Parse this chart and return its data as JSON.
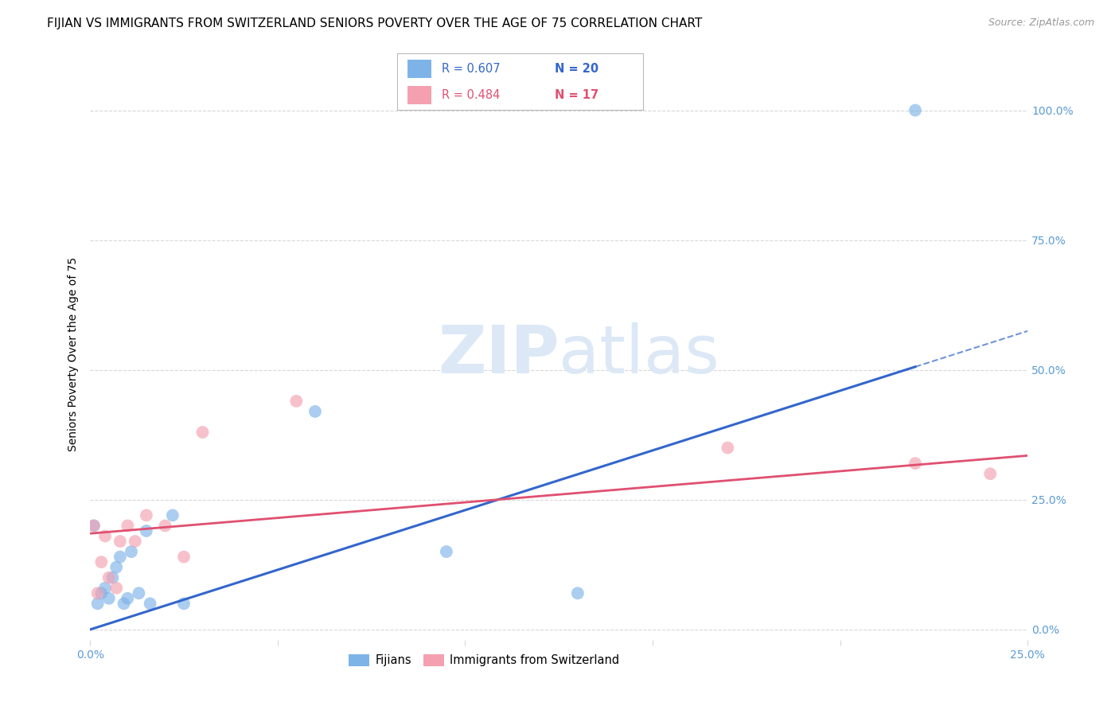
{
  "title": "FIJIAN VS IMMIGRANTS FROM SWITZERLAND SENIORS POVERTY OVER THE AGE OF 75 CORRELATION CHART",
  "source": "Source: ZipAtlas.com",
  "xlabel": "",
  "ylabel": "Seniors Poverty Over the Age of 75",
  "xlim": [
    0.0,
    0.25
  ],
  "ylim": [
    -0.02,
    1.08
  ],
  "yticks": [
    0.0,
    0.25,
    0.5,
    0.75,
    1.0
  ],
  "ytick_labels": [
    "0.0%",
    "25.0%",
    "50.0%",
    "75.0%",
    "100.0%"
  ],
  "xticks": [
    0.0,
    0.05,
    0.1,
    0.15,
    0.2,
    0.25
  ],
  "xtick_labels": [
    "0.0%",
    "",
    "",
    "",
    "",
    "25.0%"
  ],
  "fijian_color": "#7EB3E8",
  "swiss_color": "#F4A0B0",
  "trend_fijian_color": "#3366CC",
  "trend_swiss_color": "#E05070",
  "background_color": "#ffffff",
  "grid_color": "#d8d8d8",
  "legend_R_fijian": "R = 0.607",
  "legend_N_fijian": "N = 20",
  "legend_R_swiss": "R = 0.484",
  "legend_N_swiss": "N = 17",
  "fijian_x": [
    0.001,
    0.002,
    0.003,
    0.004,
    0.005,
    0.006,
    0.007,
    0.008,
    0.009,
    0.01,
    0.011,
    0.013,
    0.015,
    0.016,
    0.022,
    0.025,
    0.06,
    0.095,
    0.13,
    0.22
  ],
  "fijian_y": [
    0.2,
    0.05,
    0.07,
    0.08,
    0.06,
    0.1,
    0.12,
    0.14,
    0.05,
    0.06,
    0.15,
    0.07,
    0.19,
    0.05,
    0.22,
    0.05,
    0.42,
    0.15,
    0.07,
    1.0
  ],
  "swiss_x": [
    0.001,
    0.002,
    0.003,
    0.004,
    0.005,
    0.007,
    0.008,
    0.01,
    0.012,
    0.015,
    0.02,
    0.025,
    0.03,
    0.055,
    0.17,
    0.22,
    0.24
  ],
  "swiss_y": [
    0.2,
    0.07,
    0.13,
    0.18,
    0.1,
    0.08,
    0.17,
    0.2,
    0.17,
    0.22,
    0.2,
    0.14,
    0.38,
    0.44,
    0.35,
    0.32,
    0.3
  ],
  "marker_size": 130,
  "title_fontsize": 11,
  "axis_label_fontsize": 10,
  "tick_fontsize": 10,
  "tick_color": "#5B9BD5",
  "watermark_color": "#DCE8F5",
  "watermark_fontsize": 60,
  "trend_fijian_intercept": 0.0,
  "trend_fijian_slope": 2.3,
  "trend_swiss_intercept": 0.185,
  "trend_swiss_slope": 0.6
}
